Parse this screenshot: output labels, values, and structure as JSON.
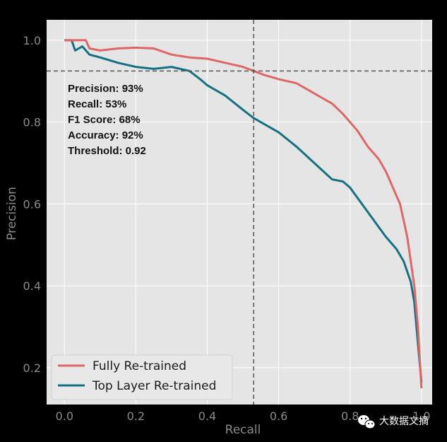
{
  "chart_data": {
    "type": "line",
    "title": "",
    "xlabel": "Recall",
    "ylabel": "Precision",
    "xlim": [
      -0.05,
      1.03
    ],
    "ylim": [
      0.11,
      1.05
    ],
    "xticks": [
      0.0,
      0.2,
      0.4,
      0.6,
      0.8,
      1.0
    ],
    "xtick_labels": [
      "0.0",
      "0.2",
      "0.4",
      "0.6",
      "0.8",
      "1.0"
    ],
    "yticks": [
      0.2,
      0.4,
      0.6,
      0.8,
      1.0
    ],
    "ytick_labels": [
      "0.2",
      "0.4",
      "0.6",
      "0.8",
      "1.0"
    ],
    "grid": true,
    "legend_position": "bottom-left",
    "threshold_point": {
      "recall": 0.53,
      "precision": 0.925
    },
    "annotation_lines": [
      "Precision: 93%",
      "Recall: 53%",
      "F1 Score: 68%",
      "Accuracy: 92%",
      "Threshold: 0.92"
    ],
    "series": [
      {
        "name": "Fully Re-trained",
        "color": "#e06666",
        "x": [
          0.0,
          0.02,
          0.05,
          0.06,
          0.07,
          0.1,
          0.15,
          0.2,
          0.25,
          0.3,
          0.35,
          0.4,
          0.45,
          0.5,
          0.53,
          0.56,
          0.6,
          0.65,
          0.7,
          0.72,
          0.75,
          0.78,
          0.8,
          0.82,
          0.85,
          0.88,
          0.9,
          0.92,
          0.94,
          0.95,
          0.96,
          0.97,
          0.98,
          0.99,
          1.0
        ],
        "values": [
          1.0,
          1.0,
          1.0,
          1.0,
          0.98,
          0.975,
          0.98,
          0.982,
          0.98,
          0.965,
          0.958,
          0.955,
          0.945,
          0.935,
          0.925,
          0.915,
          0.905,
          0.895,
          0.87,
          0.86,
          0.845,
          0.82,
          0.8,
          0.78,
          0.74,
          0.71,
          0.68,
          0.64,
          0.6,
          0.56,
          0.52,
          0.46,
          0.4,
          0.3,
          0.15
        ]
      },
      {
        "name": "Top Layer Re-trained",
        "color": "#137181",
        "x": [
          0.0,
          0.02,
          0.03,
          0.05,
          0.07,
          0.1,
          0.15,
          0.2,
          0.25,
          0.3,
          0.35,
          0.38,
          0.4,
          0.45,
          0.5,
          0.53,
          0.55,
          0.6,
          0.65,
          0.7,
          0.75,
          0.78,
          0.8,
          0.85,
          0.9,
          0.93,
          0.95,
          0.97,
          0.98,
          0.99,
          1.0
        ],
        "values": [
          1.0,
          1.0,
          0.975,
          0.985,
          0.965,
          0.958,
          0.945,
          0.935,
          0.93,
          0.935,
          0.925,
          0.905,
          0.89,
          0.865,
          0.83,
          0.81,
          0.8,
          0.775,
          0.74,
          0.7,
          0.66,
          0.655,
          0.64,
          0.58,
          0.52,
          0.49,
          0.46,
          0.41,
          0.36,
          0.26,
          0.165
        ]
      }
    ]
  },
  "watermark": {
    "text": "大数据文摘",
    "icon": "wechat-icon"
  },
  "colors": {
    "page_background": "#000000",
    "plot_background": "#e5e5e5",
    "grid": "#ffffff",
    "threshold_line": "#555555"
  }
}
